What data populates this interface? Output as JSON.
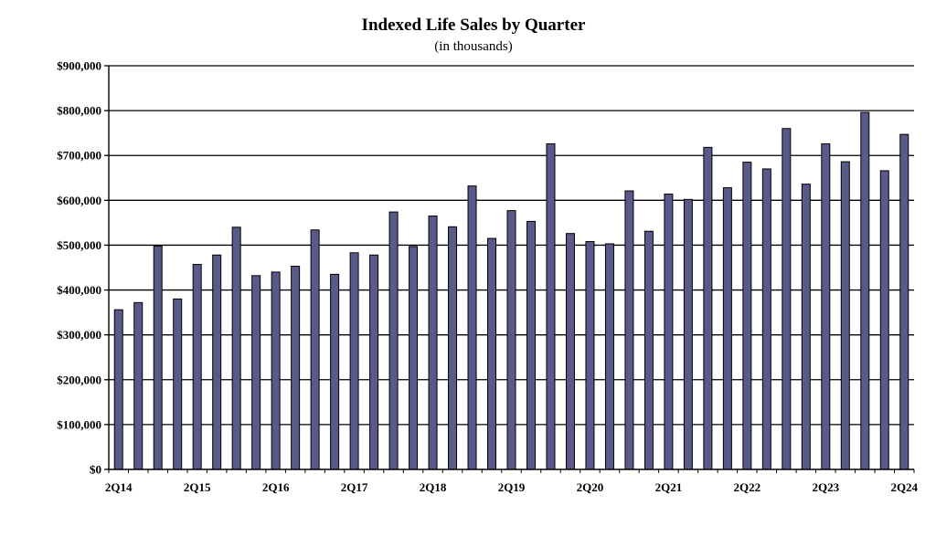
{
  "chart_data": {
    "type": "bar",
    "title": "Indexed Life Sales by Quarter",
    "subtitle": "(in thousands)",
    "xlabel": "",
    "ylabel": "",
    "ylim": [
      0,
      900000
    ],
    "yticks": [
      0,
      100000,
      200000,
      300000,
      400000,
      500000,
      600000,
      700000,
      800000,
      900000
    ],
    "ytick_labels": [
      "$0",
      "$100,000",
      "$200,000",
      "$300,000",
      "$400,000",
      "$500,000",
      "$600,000",
      "$700,000",
      "$800,000",
      "$900,000"
    ],
    "grid": true,
    "bar_color": "#5a5a8a",
    "categories": [
      "2Q14",
      "3Q14",
      "4Q14",
      "1Q15",
      "2Q15",
      "3Q15",
      "4Q15",
      "1Q16",
      "2Q16",
      "3Q16",
      "4Q16",
      "1Q17",
      "2Q17",
      "3Q17",
      "4Q17",
      "1Q18",
      "2Q18",
      "3Q18",
      "4Q18",
      "1Q19",
      "2Q19",
      "3Q19",
      "4Q19",
      "1Q20",
      "2Q20",
      "3Q20",
      "4Q20",
      "1Q21",
      "2Q21",
      "3Q21",
      "4Q21",
      "1Q22",
      "2Q22",
      "3Q22",
      "4Q22",
      "1Q23",
      "2Q23",
      "3Q23",
      "4Q23",
      "1Q24",
      "2Q24"
    ],
    "x_tick_labels": [
      "2Q14",
      "2Q15",
      "2Q16",
      "2Q17",
      "2Q18",
      "2Q19",
      "2Q20",
      "2Q21",
      "2Q22",
      "2Q23",
      "2Q24"
    ],
    "values": [
      356000,
      372000,
      498000,
      380000,
      457000,
      478000,
      540000,
      432000,
      440000,
      453000,
      534000,
      435000,
      483000,
      478000,
      574000,
      497000,
      565000,
      541000,
      632000,
      515000,
      577000,
      553000,
      726000,
      526000,
      508000,
      503000,
      621000,
      531000,
      614000,
      602000,
      718000,
      628000,
      685000,
      670000,
      760000,
      636000,
      726000,
      686000,
      796000,
      666000,
      747000
    ]
  }
}
